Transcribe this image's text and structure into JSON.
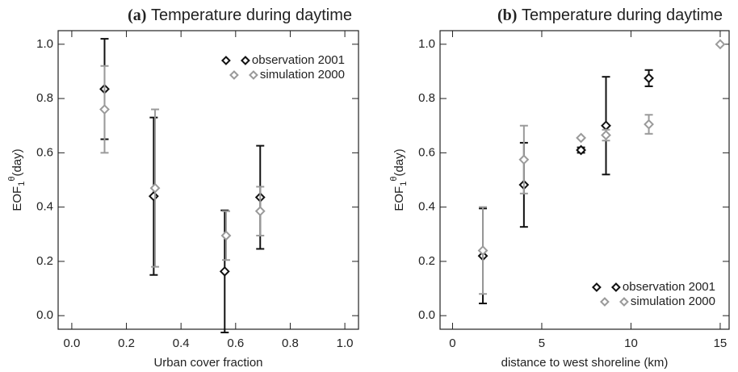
{
  "chart_data": [
    {
      "type": "scatter",
      "panel": "(a)",
      "title": "Temperature during daytime",
      "x_label": "Urban cover fraction",
      "y_label": {
        "base": "EOF",
        "sub": "1",
        "sup": "θ",
        "rest": "(day)"
      },
      "xlim": [
        -0.05,
        1.05
      ],
      "xticks": [
        {
          "value": 0,
          "label": "0.0"
        },
        0.2,
        0.4,
        0.6,
        0.8,
        {
          "value": 1,
          "label": "1.0"
        }
      ],
      "ylim": [
        -0.05,
        1.05
      ],
      "yticks": [
        {
          "value": 0,
          "label": "0.0"
        },
        0.2,
        0.4,
        0.6,
        0.8,
        {
          "value": 1,
          "label": "1.0"
        }
      ],
      "legend": "upper right",
      "series": [
        {
          "name": "observation 2001",
          "color": "#111111",
          "x": [
            0.12,
            0.3,
            0.56,
            0.69
          ],
          "values": [
            0.835,
            0.44,
            0.163,
            0.436
          ],
          "errors": [
            0.185,
            0.29,
            0.225,
            0.19
          ]
        },
        {
          "name": "simulation 2000",
          "color": "#9a9a9a",
          "x": [
            0.12,
            0.305,
            0.565,
            0.69
          ],
          "values": [
            0.76,
            0.47,
            0.295,
            0.385
          ],
          "errors": [
            0.16,
            0.29,
            0.09,
            0.09
          ]
        }
      ]
    },
    {
      "type": "scatter",
      "panel": "(b)",
      "title": "Temperature during daytime",
      "x_label": "distance to west shoreline (km)",
      "y_label": {
        "base": "EOF",
        "sub": "1",
        "sup": "θ",
        "rest": "(day)"
      },
      "xlim": [
        -0.7,
        15.5
      ],
      "xticks": [
        0,
        5,
        10,
        15
      ],
      "ylim": [
        -0.05,
        1.05
      ],
      "yticks": [
        {
          "value": 0,
          "label": "0.0"
        },
        0.2,
        0.4,
        0.6,
        0.8,
        {
          "value": 1,
          "label": "1.0"
        }
      ],
      "legend": "lower right",
      "series": [
        {
          "name": "observation 2001",
          "color": "#111111",
          "x": [
            1.7,
            4.0,
            7.2,
            8.6,
            11.0
          ],
          "values": [
            0.22,
            0.482,
            0.61,
            0.7,
            0.875
          ],
          "errors": [
            0.175,
            0.155,
            0.01,
            0.18,
            0.03
          ]
        },
        {
          "name": "simulation 2000",
          "color": "#9a9a9a",
          "x": [
            1.7,
            4.0,
            7.2,
            8.6,
            11.0,
            15.0
          ],
          "values": [
            0.24,
            0.575,
            0.655,
            0.665,
            0.705,
            1.0
          ],
          "errors": [
            0.16,
            0.125,
            0,
            0.02,
            0.035,
            0
          ]
        }
      ]
    }
  ]
}
